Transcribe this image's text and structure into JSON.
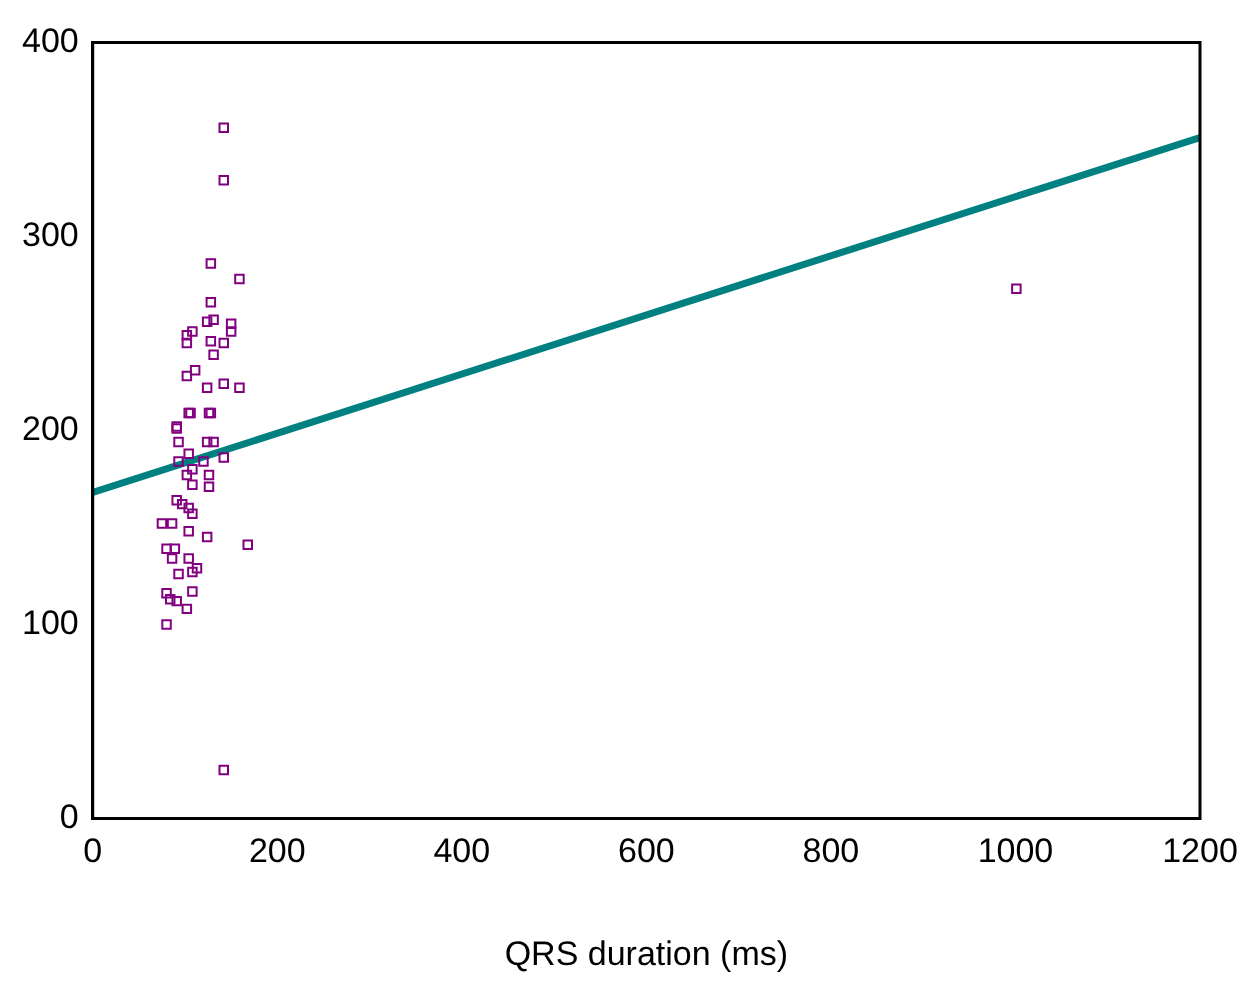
{
  "chart_data": {
    "type": "scatter",
    "xlabel": "QRS duration (ms)",
    "xlim": [
      0,
      1200
    ],
    "xticks": [
      0,
      200,
      400,
      600,
      800,
      1000,
      1200
    ],
    "ylim": [
      0,
      400
    ],
    "yticks": [
      0,
      100,
      200,
      300,
      400
    ],
    "grid": false,
    "legend": false,
    "series": [
      {
        "marker": "square",
        "color": "#800080",
        "x": [
          142,
          142,
          128,
          159,
          128,
          131,
          124,
          150,
          150,
          108,
          102,
          102,
          128,
          142,
          131,
          111,
          102,
          124,
          142,
          159,
          106,
          128,
          91,
          104,
          126,
          91,
          93,
          124,
          131,
          104,
          93,
          120,
          142,
          108,
          126,
          102,
          108,
          126,
          91,
          97,
          104,
          108,
          75,
          86,
          104,
          124,
          168,
          80,
          89,
          86,
          104,
          113,
          108,
          93,
          108,
          80,
          84,
          91,
          102,
          80,
          142,
          1001
        ],
        "values": [
          356,
          329,
          286,
          278,
          266,
          257,
          256,
          255,
          251,
          251,
          249,
          245,
          246,
          245,
          239,
          231,
          228,
          222,
          224,
          222,
          209,
          209,
          202,
          209,
          209,
          201,
          194,
          194,
          194,
          188,
          184,
          184,
          186,
          180,
          177,
          177,
          172,
          171,
          164,
          162,
          160,
          157,
          152,
          152,
          148,
          145,
          141,
          139,
          139,
          134,
          134,
          129,
          127,
          126,
          117,
          116,
          113,
          112,
          108,
          100,
          25,
          273
        ]
      },
      {
        "type": "line",
        "color": "#008080",
        "x": [
          0,
          1200
        ],
        "values": [
          168,
          351
        ]
      }
    ]
  }
}
